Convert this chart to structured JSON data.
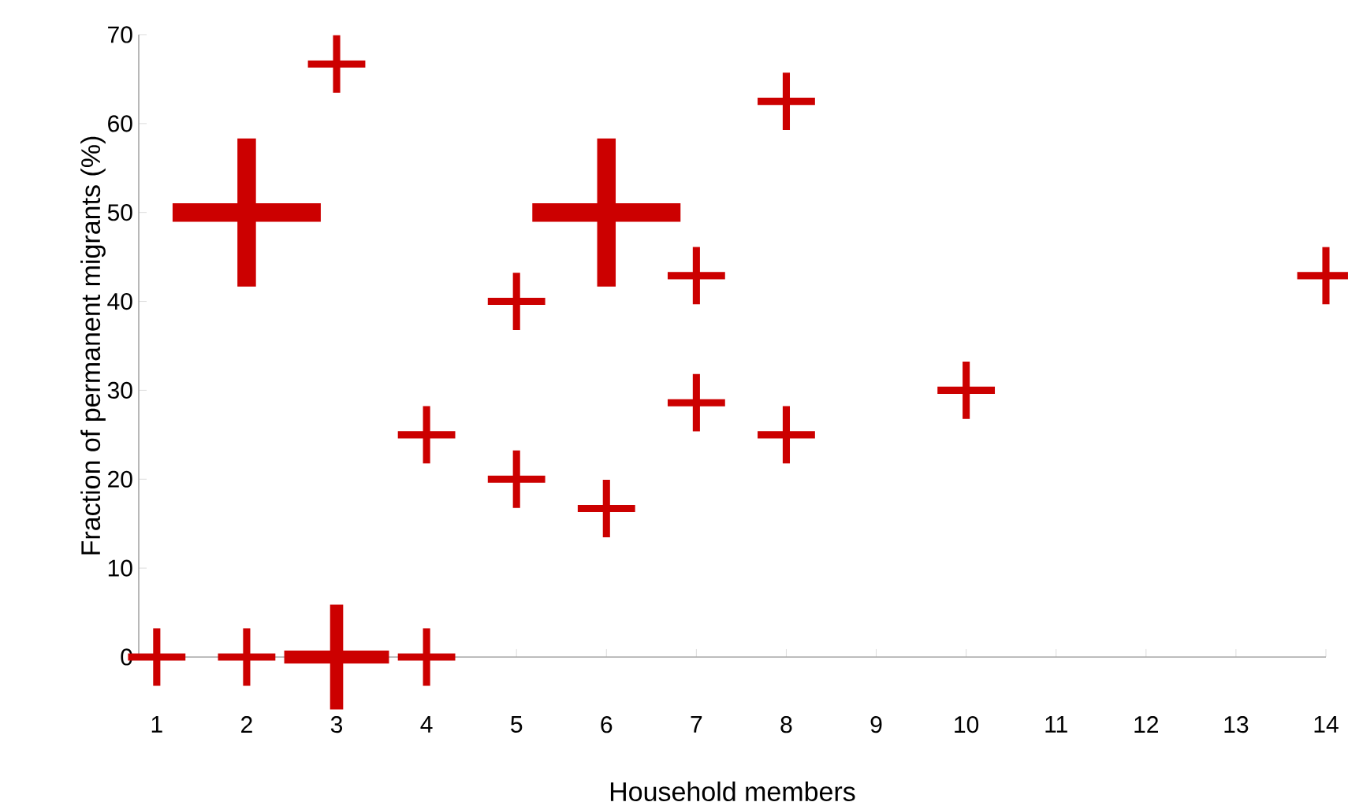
{
  "chart_data": {
    "type": "bubble",
    "xlabel": "Household members",
    "ylabel": "Fraction of permanent migrants (%)",
    "x": [
      1,
      2,
      3,
      4,
      2,
      3,
      4,
      5,
      5,
      6,
      6,
      7,
      7,
      8,
      8,
      10,
      14
    ],
    "values": [
      0,
      0,
      0,
      0,
      50,
      66.7,
      25,
      40,
      20,
      50,
      16.7,
      42.9,
      28.6,
      62.5,
      25,
      30,
      42.9
    ],
    "sizes": [
      0.15,
      0.15,
      0.5,
      0.15,
      1,
      0.15,
      0.15,
      0.15,
      0.15,
      1,
      0.15,
      0.15,
      0.15,
      0.15,
      0.15,
      0.15,
      0.15
    ],
    "color": "#cc0000",
    "marker": "cross",
    "xlim": [
      0.8,
      14
    ],
    "ylim": [
      0,
      70
    ],
    "xticks": [
      1,
      2,
      3,
      4,
      5,
      6,
      7,
      8,
      9,
      10,
      11,
      12,
      13,
      14
    ],
    "yticks": [
      0,
      10,
      20,
      30,
      40,
      50,
      60,
      70
    ]
  }
}
